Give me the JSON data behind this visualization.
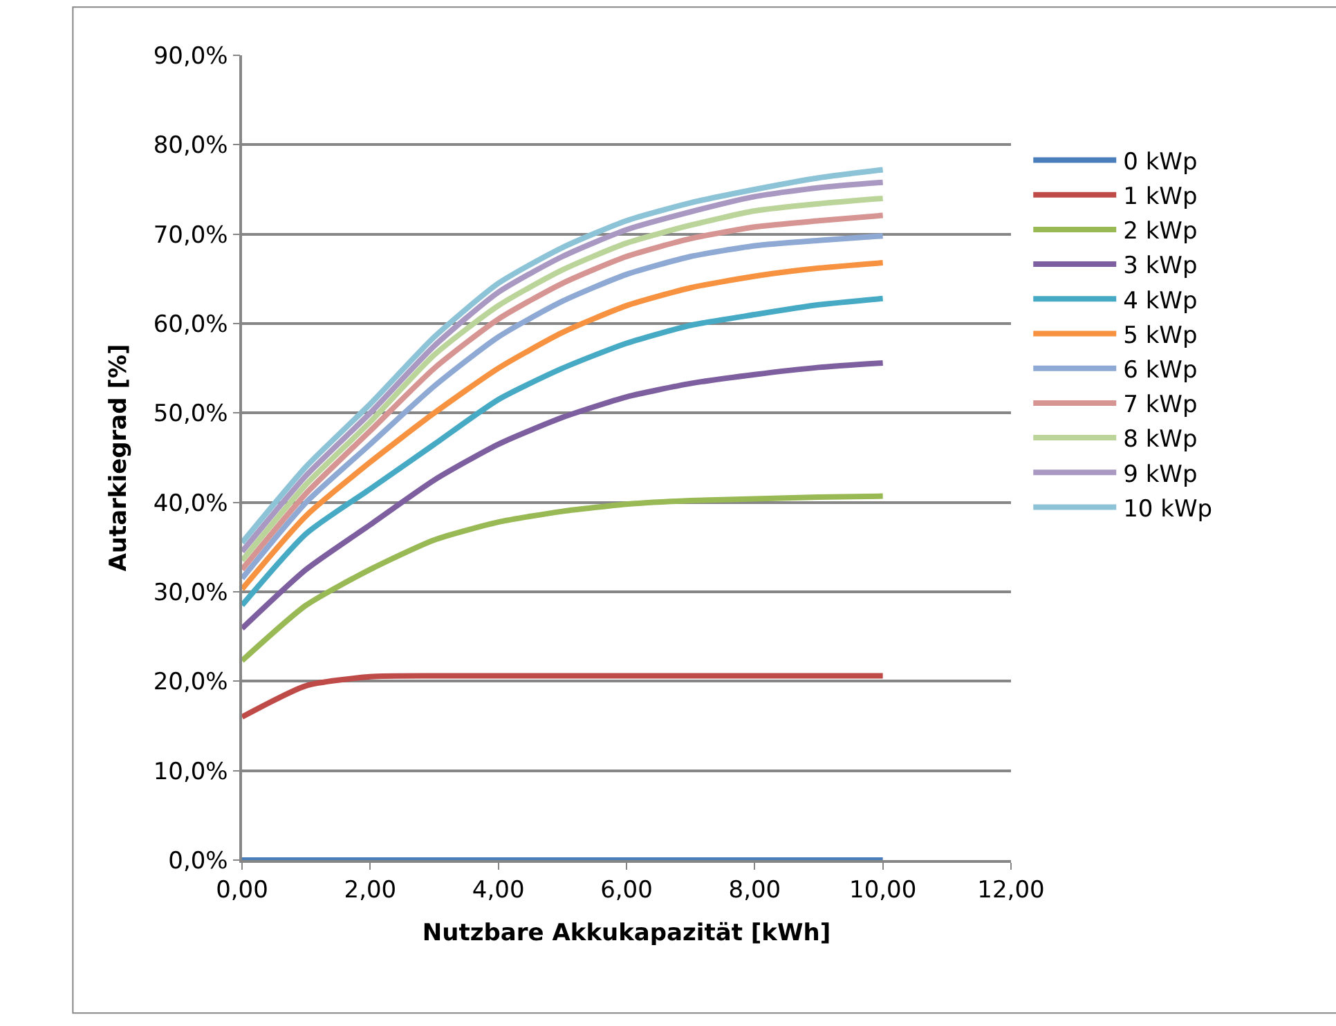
{
  "chart_data": {
    "type": "line",
    "xlabel": "Nutzbare Akkukapazität [kWh]",
    "ylabel": "Autarkiegrad [%]",
    "x": [
      0,
      1,
      2,
      3,
      4,
      5,
      6,
      7,
      8,
      9,
      10
    ],
    "xlim": [
      0,
      12
    ],
    "xticks": [
      {
        "value": 0,
        "label": "0,00"
      },
      {
        "value": 2,
        "label": "2,00"
      },
      {
        "value": 4,
        "label": "4,00"
      },
      {
        "value": 6,
        "label": "6,00"
      },
      {
        "value": 8,
        "label": "8,00"
      },
      {
        "value": 10,
        "label": "10,00"
      },
      {
        "value": 12,
        "label": "12,00"
      }
    ],
    "ylim": [
      0,
      90
    ],
    "yticks": [
      {
        "value": 0,
        "label": "0,0%"
      },
      {
        "value": 10,
        "label": "10,0%"
      },
      {
        "value": 20,
        "label": "20,0%"
      },
      {
        "value": 30,
        "label": "30,0%"
      },
      {
        "value": 40,
        "label": "40,0%"
      },
      {
        "value": 50,
        "label": "50,0%"
      },
      {
        "value": 60,
        "label": "60,0%"
      },
      {
        "value": 70,
        "label": "70,0%"
      },
      {
        "value": 80,
        "label": "80,0%"
      },
      {
        "value": 90,
        "label": "90,0%"
      }
    ],
    "grid": "y",
    "legend": "right",
    "marker": "none",
    "line_style": "solid",
    "series": [
      {
        "name": "0 kWp",
        "color": "#4a7ebb",
        "values": [
          0,
          0,
          0,
          0,
          0,
          0,
          0,
          0,
          0,
          0,
          0
        ]
      },
      {
        "name": "1 kWp",
        "color": "#be4b48",
        "values": [
          16.0,
          19.5,
          20.5,
          20.6,
          20.6,
          20.6,
          20.6,
          20.6,
          20.6,
          20.6,
          20.6
        ]
      },
      {
        "name": "2 kWp",
        "color": "#98b954",
        "values": [
          22.3,
          28.5,
          32.5,
          35.8,
          37.8,
          39.0,
          39.8,
          40.2,
          40.4,
          40.6,
          40.7
        ]
      },
      {
        "name": "3 kWp",
        "color": "#7d5fa0",
        "values": [
          25.9,
          32.5,
          37.5,
          42.5,
          46.5,
          49.5,
          51.8,
          53.3,
          54.3,
          55.1,
          55.6
        ]
      },
      {
        "name": "4 kWp",
        "color": "#46aac5",
        "values": [
          28.5,
          36.5,
          41.5,
          46.5,
          51.5,
          55.0,
          57.8,
          59.8,
          61.0,
          62.1,
          62.8
        ]
      },
      {
        "name": "5 kWp",
        "color": "#f69240",
        "values": [
          30.3,
          38.5,
          44.5,
          50.0,
          55.0,
          59.0,
          62.0,
          64.0,
          65.3,
          66.2,
          66.8
        ]
      },
      {
        "name": "6 kWp",
        "color": "#8ea9d4",
        "values": [
          31.5,
          40.0,
          46.5,
          53.0,
          58.5,
          62.5,
          65.5,
          67.5,
          68.7,
          69.3,
          69.8
        ]
      },
      {
        "name": "7 kWp",
        "color": "#d69592",
        "values": [
          32.5,
          41.0,
          48.0,
          55.0,
          60.5,
          64.5,
          67.5,
          69.5,
          70.8,
          71.5,
          72.1
        ]
      },
      {
        "name": "8 kWp",
        "color": "#bad499",
        "values": [
          33.5,
          42.0,
          49.0,
          56.5,
          62.0,
          66.0,
          69.0,
          71.0,
          72.6,
          73.4,
          74.0
        ]
      },
      {
        "name": "9 kWp",
        "color": "#a999c2",
        "values": [
          34.5,
          43.0,
          50.0,
          57.5,
          63.5,
          67.5,
          70.5,
          72.5,
          74.2,
          75.2,
          75.8
        ]
      },
      {
        "name": "10 kWp",
        "color": "#8dc3d6",
        "values": [
          35.5,
          44.0,
          51.0,
          58.5,
          64.5,
          68.5,
          71.5,
          73.5,
          75.0,
          76.3,
          77.2
        ]
      }
    ]
  }
}
